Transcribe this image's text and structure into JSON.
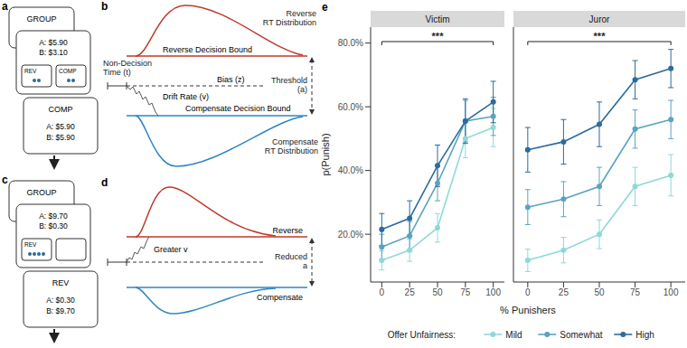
{
  "diagram": {
    "panels": [
      {
        "label": "a",
        "cards": [
          {
            "title": "GROUP"
          },
          {
            "lines": [
              "A: $5.90",
              "B: $3.10"
            ],
            "options": [
              {
                "label": "REV",
                "dots": 2
              },
              {
                "label": "COMP",
                "dots": 2
              }
            ]
          },
          {
            "title": "COMP",
            "lines": [
              "A: $5.90",
              "B: $5.90"
            ]
          }
        ]
      },
      {
        "label": "b",
        "texts": {
          "upper_distribution": "Reverse RT Distribution",
          "upper_bound": "Reverse Decision Bound",
          "non_decision": "Non-Decision Time (t)",
          "threshold": "Threshold (a)",
          "bias": "Bias (z)",
          "drift": "Drift Rate (v)",
          "lower_bound": "Compensate Decision Bound",
          "lower_distribution": "Compensate RT Distribution"
        }
      },
      {
        "label": "c",
        "cards": [
          {
            "title": "GROUP"
          },
          {
            "lines": [
              "A: $9.70",
              "B: $0.30"
            ],
            "options": [
              {
                "label": "REV",
                "dots": 4
              },
              {
                "dots": 0
              }
            ]
          },
          {
            "title": "REV",
            "lines": [
              "A: $0.30",
              "B: $9.70"
            ]
          }
        ]
      },
      {
        "label": "d",
        "texts": {
          "upper_bound": "Reverse",
          "drift": "Greater v",
          "threshold": "Reduced a",
          "lower_bound": "Compensate"
        }
      }
    ]
  },
  "panel_e": {
    "label": "e",
    "x_label": "% Punishers",
    "y_label": "p(Punish)",
    "legend_title": "Offer Unfairness:",
    "legend": "bottom"
  },
  "chart_data": [
    {
      "type": "line",
      "title": "Victim",
      "annotation": "***",
      "marker": "circle",
      "x": [
        0,
        25,
        50,
        75,
        100
      ],
      "xlim": [
        -10,
        110
      ],
      "xticks": [
        0,
        25,
        50,
        75,
        100
      ],
      "ylim": [
        5,
        85
      ],
      "yticks": [
        {
          "value": 20,
          "label": "20.0%"
        },
        {
          "value": 40,
          "label": "40.0%"
        },
        {
          "value": 60,
          "label": "60.0%"
        },
        {
          "value": 80,
          "label": "80.0%"
        }
      ],
      "series": [
        {
          "name": "Mild",
          "color": "#8ed8d8",
          "values": [
            11.8,
            15,
            22,
            50,
            53.5
          ],
          "errors": [
            3,
            3.5,
            4.5,
            6,
            6
          ]
        },
        {
          "name": "Somewhat",
          "color": "#5aa3c2",
          "values": [
            16,
            19.5,
            36,
            55.5,
            57
          ],
          "errors": [
            4,
            4.5,
            5.5,
            6.5,
            6
          ]
        },
        {
          "name": "High",
          "color": "#2c6b9a",
          "values": [
            21.5,
            25,
            41.5,
            55.5,
            61.5
          ],
          "errors": [
            5,
            5.5,
            6.5,
            7,
            6.5
          ]
        }
      ]
    },
    {
      "type": "line",
      "title": "Juror",
      "annotation": "***",
      "marker": "circle",
      "tick_labels": "x",
      "x": [
        0,
        25,
        50,
        75,
        100
      ],
      "xlim": [
        -10,
        110
      ],
      "xticks": [
        0,
        25,
        50,
        75,
        100
      ],
      "ylim": [
        5,
        85
      ],
      "yticks": [
        {
          "value": 20,
          "label": "20.0%"
        },
        {
          "value": 40,
          "label": "40.0%"
        },
        {
          "value": 60,
          "label": "60.0%"
        },
        {
          "value": 80,
          "label": "80.0%"
        }
      ],
      "series": [
        {
          "name": "Mild",
          "color": "#8ed8d8",
          "values": [
            11.8,
            15,
            20,
            35,
            38.5
          ],
          "errors": [
            3.5,
            4,
            4.5,
            6,
            6.5
          ]
        },
        {
          "name": "Somewhat",
          "color": "#5aa3c2",
          "values": [
            28.5,
            31,
            35,
            53,
            56
          ],
          "errors": [
            5.5,
            5.5,
            6,
            6,
            6
          ]
        },
        {
          "name": "High",
          "color": "#2c6b9a",
          "values": [
            46.5,
            49,
            54.5,
            68.5,
            72
          ],
          "errors": [
            7,
            7,
            7,
            6,
            6
          ]
        }
      ]
    }
  ]
}
